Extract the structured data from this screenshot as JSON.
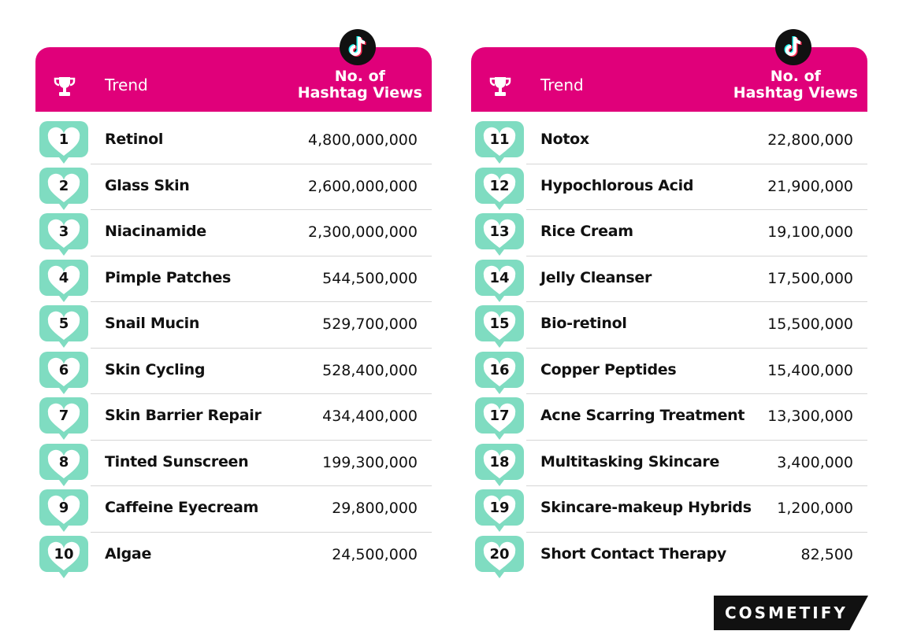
{
  "tables": [
    {
      "header": {
        "trend": "Trend",
        "views": "No. of\nHashtag Views"
      },
      "rows": [
        [
          1,
          "Retinol",
          "4,800,000,000"
        ],
        [
          2,
          "Glass Skin",
          "2,600,000,000"
        ],
        [
          3,
          "Niacinamide",
          "2,300,000,000"
        ],
        [
          4,
          "Pimple Patches",
          "544,500,000"
        ],
        [
          5,
          "Snail Mucin",
          "529,700,000"
        ],
        [
          6,
          "Skin Cycling",
          "528,400,000"
        ],
        [
          7,
          "Skin Barrier Repair",
          "434,400,000"
        ],
        [
          8,
          "Tinted Sunscreen",
          "199,300,000"
        ],
        [
          9,
          "Caffeine Eyecream",
          "29,800,000"
        ],
        [
          10,
          "Algae",
          "24,500,000"
        ]
      ]
    },
    {
      "header": {
        "trend": "Trend",
        "views": "No. of\nHashtag Views"
      },
      "rows": [
        [
          11,
          "Notox",
          "22,800,000"
        ],
        [
          12,
          "Hypochlorous Acid",
          "21,900,000"
        ],
        [
          13,
          "Rice Cream",
          "19,100,000"
        ],
        [
          14,
          "Jelly Cleanser",
          "17,500,000"
        ],
        [
          15,
          "Bio-retinol",
          "15,500,000"
        ],
        [
          16,
          "Copper Peptides",
          "15,400,000"
        ],
        [
          17,
          "Acne Scarring Treatment",
          "13,300,000"
        ],
        [
          18,
          "Multitasking Skincare",
          "3,400,000"
        ],
        [
          19,
          "Skincare-makeup Hybrids",
          "1,200,000"
        ],
        [
          20,
          "Short Contact Therapy",
          "82,500"
        ]
      ]
    }
  ],
  "brand": "COSMETIFY"
}
